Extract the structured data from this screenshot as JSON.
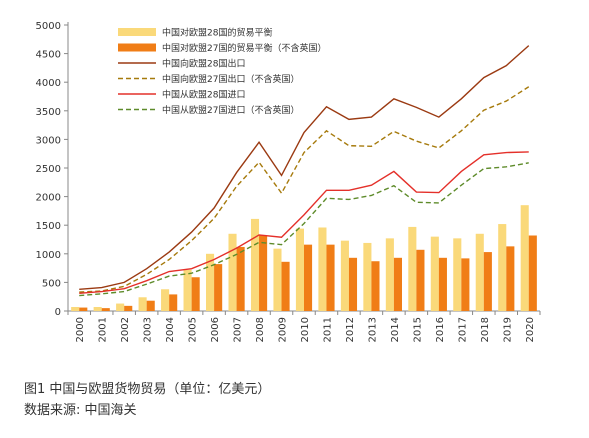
{
  "chart_data": {
    "type": "bar",
    "title": "",
    "xlabel": "",
    "ylabel": "",
    "ylim": [
      0,
      5000
    ],
    "yticks": [
      0,
      500,
      1000,
      1500,
      2000,
      2500,
      3000,
      3500,
      4000,
      4500,
      5000
    ],
    "categories": [
      "2000",
      "2001",
      "2002",
      "2003",
      "2004",
      "2005",
      "2006",
      "2007",
      "2008",
      "2009",
      "2010",
      "2011",
      "2012",
      "2013",
      "2014",
      "2015",
      "2016",
      "2017",
      "2018",
      "2019",
      "2020"
    ],
    "grid": false,
    "legend_position": "top-left",
    "series": [
      {
        "name": "中国对欧盟28国的贸易平衡",
        "kind": "bar",
        "color": "#FAD97A",
        "values": [
          70,
          70,
          130,
          240,
          380,
          720,
          1000,
          1350,
          1610,
          1090,
          1440,
          1460,
          1230,
          1190,
          1270,
          1470,
          1300,
          1270,
          1350,
          1520,
          1850
        ]
      },
      {
        "name": "中国对欧盟27国的贸易平衡（不含英国）",
        "kind": "bar",
        "color": "#F07D16",
        "values": [
          60,
          50,
          90,
          180,
          290,
          590,
          820,
          1120,
          1320,
          860,
          1160,
          1160,
          930,
          870,
          930,
          1070,
          930,
          920,
          1030,
          1130,
          1320
        ]
      },
      {
        "name": "中国向欧盟28国出口",
        "kind": "line",
        "color": "#9B3A12",
        "dash": "",
        "values": [
          380,
          410,
          500,
          740,
          1030,
          1380,
          1800,
          2420,
          2950,
          2370,
          3120,
          3570,
          3350,
          3390,
          3710,
          3560,
          3390,
          3710,
          4080,
          4290,
          4640
        ]
      },
      {
        "name": "中国向欧盟27国出口（不含英国）",
        "kind": "line",
        "color": "#A67A0C",
        "dash": "5,3",
        "values": [
          330,
          350,
          430,
          640,
          900,
          1230,
          1620,
          2180,
          2600,
          2060,
          2770,
          3150,
          2890,
          2880,
          3140,
          2970,
          2850,
          3150,
          3510,
          3670,
          3920
        ]
      },
      {
        "name": "中国从欧盟28国进口",
        "kind": "line",
        "color": "#E4302A",
        "dash": "",
        "values": [
          310,
          340,
          390,
          530,
          690,
          740,
          900,
          1100,
          1330,
          1290,
          1680,
          2110,
          2110,
          2200,
          2440,
          2080,
          2070,
          2440,
          2730,
          2770,
          2780
        ]
      },
      {
        "name": "中国从欧盟27国进口（不含英国）",
        "kind": "line",
        "color": "#5E8B2A",
        "dash": "5,3",
        "values": [
          270,
          300,
          340,
          470,
          610,
          660,
          810,
          990,
          1200,
          1160,
          1530,
          1970,
          1950,
          2020,
          2190,
          1900,
          1890,
          2200,
          2490,
          2520,
          2590
        ]
      }
    ]
  },
  "caption": {
    "line1": "图1  中国与欧盟货物贸易（单位：亿美元）",
    "line2": "数据来源: 中国海关"
  }
}
